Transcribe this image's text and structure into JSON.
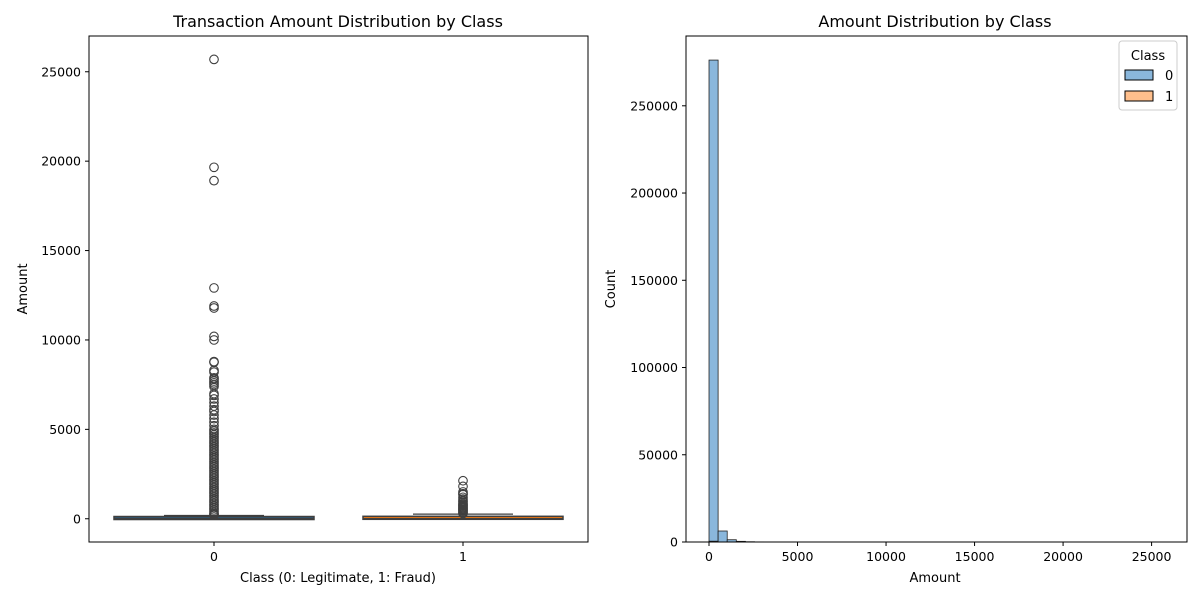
{
  "chart_data": [
    {
      "type": "box",
      "title": "Transaction Amount Distribution by Class",
      "xlabel": "Class (0: Legitimate, 1: Fraud)",
      "ylabel": "Amount",
      "categories": [
        "0",
        "1"
      ],
      "ylim": [
        -1300,
        27000
      ],
      "yticks": [
        0,
        5000,
        10000,
        15000,
        20000,
        25000
      ],
      "yticklabels": [
        "0",
        "5000",
        "10000",
        "15000",
        "20000",
        "25000"
      ],
      "boxes": [
        {
          "category": "0",
          "min": 0,
          "q1": 5.6,
          "median": 22,
          "q3": 77,
          "whisker_high": 185,
          "box_color": "#1f77b4",
          "outliers": [
            25691,
            19656,
            18910,
            12910,
            11898,
            11789,
            10199,
            10000,
            8790,
            8750,
            8300,
            8200,
            7880,
            7800,
            7700,
            7600,
            7500,
            7400,
            7000,
            6900,
            6700,
            6500,
            6300,
            6100,
            6000,
            5800,
            5600,
            5400,
            5200,
            5000,
            4900,
            4800,
            4700,
            4600,
            4500,
            4400,
            4300,
            4200,
            4100,
            4000,
            3900,
            3800,
            3700,
            3600,
            3500,
            3400,
            3300,
            3200,
            3100,
            3000,
            2900,
            2800,
            2700,
            2600,
            2500,
            2400,
            2300,
            2200,
            2100,
            2000,
            1900,
            1800,
            1700,
            1600,
            1500,
            1400,
            1300,
            1200,
            1100,
            1000,
            900,
            800,
            700,
            600,
            500,
            400,
            300,
            250,
            200
          ]
        },
        {
          "category": "1",
          "min": 0,
          "q1": 1,
          "median": 9,
          "q3": 105,
          "whisker_high": 260,
          "box_color": "#ff7f0e",
          "outliers": [
            2126,
            1810,
            1500,
            1400,
            1350,
            1200,
            1100,
            1000,
            930,
            850,
            800,
            750,
            700,
            650,
            600,
            550,
            500,
            450,
            400,
            350,
            300
          ]
        }
      ]
    },
    {
      "type": "histogram",
      "title": "Amount Distribution by Class",
      "xlabel": "Amount",
      "ylabel": "Count",
      "xlim": [
        -1300,
        27000
      ],
      "ylim": [
        0,
        290000
      ],
      "xticks": [
        0,
        5000,
        10000,
        15000,
        20000,
        25000
      ],
      "xticklabels": [
        "0",
        "5000",
        "10000",
        "15000",
        "20000",
        "25000"
      ],
      "yticks": [
        0,
        50000,
        100000,
        150000,
        200000,
        250000
      ],
      "yticklabels": [
        "0",
        "50000",
        "100000",
        "150000",
        "200000",
        "250000"
      ],
      "bin_width": 514,
      "legend": {
        "title": "Class",
        "position": "top-right"
      },
      "series": [
        {
          "name": "0",
          "color": "#8ab7dc",
          "bins": [
            {
              "x0": 0,
              "count": 276200
            },
            {
              "x0": 514,
              "count": 6300
            },
            {
              "x0": 1028,
              "count": 1300
            },
            {
              "x0": 1542,
              "count": 380
            },
            {
              "x0": 2056,
              "count": 150
            },
            {
              "x0": 2570,
              "count": 60
            }
          ]
        },
        {
          "name": "1",
          "color": "#ffbf8c",
          "bins": [
            {
              "x0": 0,
              "count": 460
            },
            {
              "x0": 514,
              "count": 25
            },
            {
              "x0": 1028,
              "count": 7
            }
          ]
        }
      ]
    }
  ]
}
